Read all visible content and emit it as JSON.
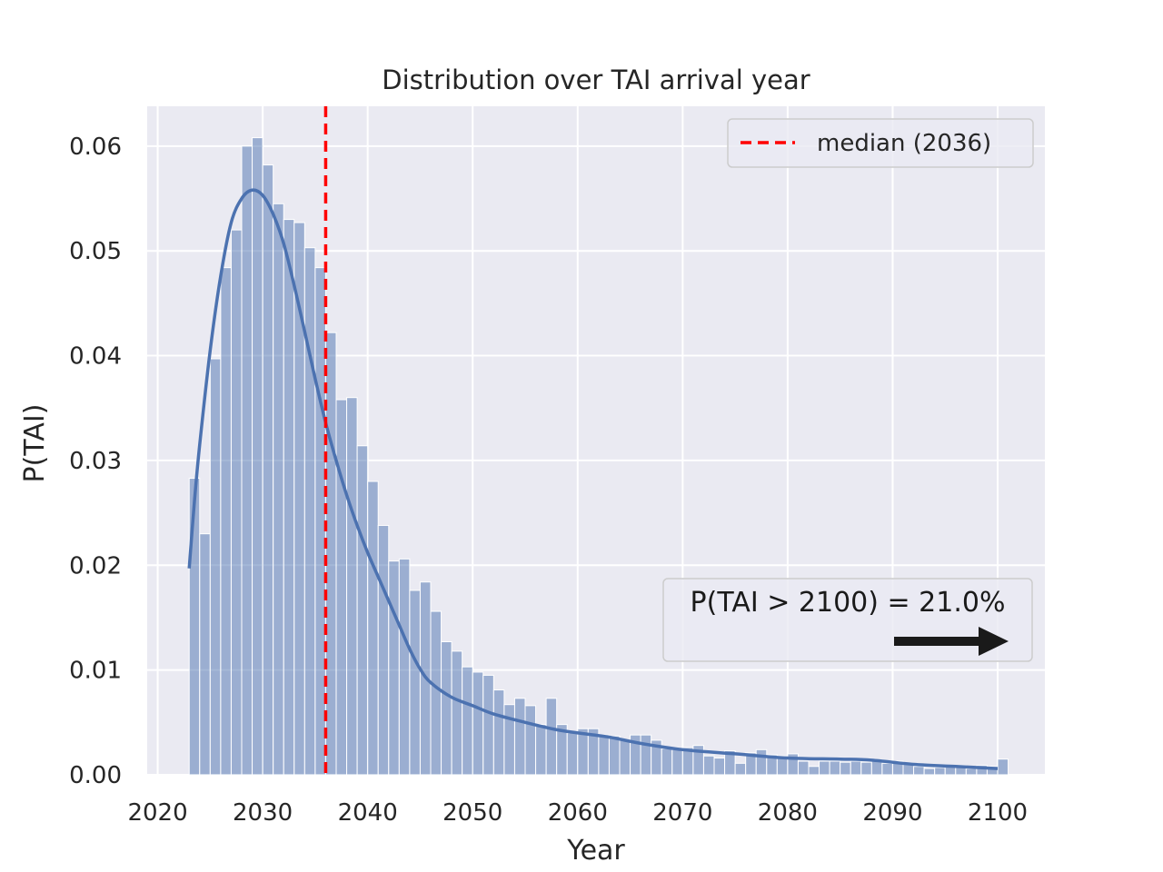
{
  "chart_data": {
    "type": "bar",
    "title": "Distribution over TAI arrival year",
    "xlabel": "Year",
    "ylabel": "P(TAI)",
    "xlim": [
      2019,
      2104.5
    ],
    "ylim": [
      0,
      0.0638
    ],
    "grid": true,
    "xticks": [
      "2020",
      "2030",
      "2040",
      "2050",
      "2060",
      "2070",
      "2080",
      "2090",
      "2100"
    ],
    "yticks": [
      "0.00",
      "0.01",
      "0.02",
      "0.03",
      "0.04",
      "0.05",
      "0.06"
    ],
    "histogram": {
      "bin_start": 2023,
      "bin_width": 1,
      "values": [
        0.0283,
        0.023,
        0.0397,
        0.0484,
        0.052,
        0.06,
        0.0608,
        0.0582,
        0.0545,
        0.053,
        0.0527,
        0.0503,
        0.0484,
        0.0422,
        0.0358,
        0.036,
        0.0314,
        0.028,
        0.0238,
        0.0204,
        0.0206,
        0.0176,
        0.0184,
        0.0156,
        0.0127,
        0.0118,
        0.0103,
        0.0098,
        0.0095,
        0.0081,
        0.0067,
        0.0073,
        0.0066,
        0.0048,
        0.0073,
        0.0048,
        0.004,
        0.0044,
        0.0044,
        0.0038,
        0.0037,
        0.0033,
        0.0038,
        0.0038,
        0.0033,
        0.0025,
        0.0024,
        0.0026,
        0.0028,
        0.0018,
        0.0016,
        0.0023,
        0.0011,
        0.0021,
        0.0024,
        0.0019,
        0.0018,
        0.002,
        0.0013,
        0.0008,
        0.0013,
        0.0013,
        0.0012,
        0.0013,
        0.0012,
        0.0014,
        0.0011,
        0.0013,
        0.001,
        0.0008,
        0.0006,
        0.0007,
        0.0008,
        0.0009,
        0.0006,
        0.0009,
        0.0008,
        0.0015
      ]
    },
    "kde": {
      "x": [
        2023,
        2023.5,
        2024,
        2025,
        2026,
        2027,
        2028,
        2029,
        2030,
        2031,
        2032,
        2033,
        2034,
        2035,
        2036,
        2037,
        2038,
        2039,
        2040,
        2041,
        2042,
        2043,
        2044,
        2045,
        2046,
        2048,
        2050,
        2052,
        2055,
        2058,
        2060,
        2063,
        2066,
        2070,
        2075,
        2080,
        2085,
        2088,
        2092,
        2096,
        2100
      ],
      "y": [
        0.0197,
        0.0261,
        0.0315,
        0.0405,
        0.0476,
        0.0527,
        0.055,
        0.0558,
        0.0553,
        0.0535,
        0.0507,
        0.0467,
        0.0423,
        0.0378,
        0.0336,
        0.03,
        0.0267,
        0.0238,
        0.0212,
        0.0189,
        0.0166,
        0.0143,
        0.012,
        0.0101,
        0.0088,
        0.0074,
        0.0066,
        0.0058,
        0.005,
        0.0043,
        0.004,
        0.0036,
        0.003,
        0.0024,
        0.002,
        0.0016,
        0.0015,
        0.0014,
        0.001,
        0.0008,
        0.0006
      ]
    },
    "median": {
      "x": 2036,
      "label": "median (2036)",
      "color": "#ff0000"
    },
    "legend_placement": "top-right",
    "annotation": {
      "text": "P(TAI > 2100) = 21.0%",
      "arrow": "right"
    },
    "colors": {
      "bar": "#4c72b0",
      "kde": "#4c72b0",
      "axes_bg": "#eaeaf2",
      "grid": "#ffffff"
    }
  }
}
